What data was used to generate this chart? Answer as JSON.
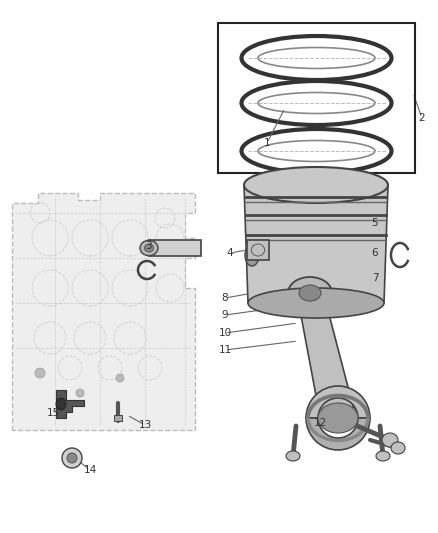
{
  "bg_color": "#ffffff",
  "fig_width": 4.38,
  "fig_height": 5.33,
  "dpi": 100,
  "line_color": "#555555",
  "text_color": "#333333",
  "part_gray": "#b0b0b0",
  "part_light": "#d8d8d8",
  "part_dark": "#555555",
  "part_mid": "#909090"
}
